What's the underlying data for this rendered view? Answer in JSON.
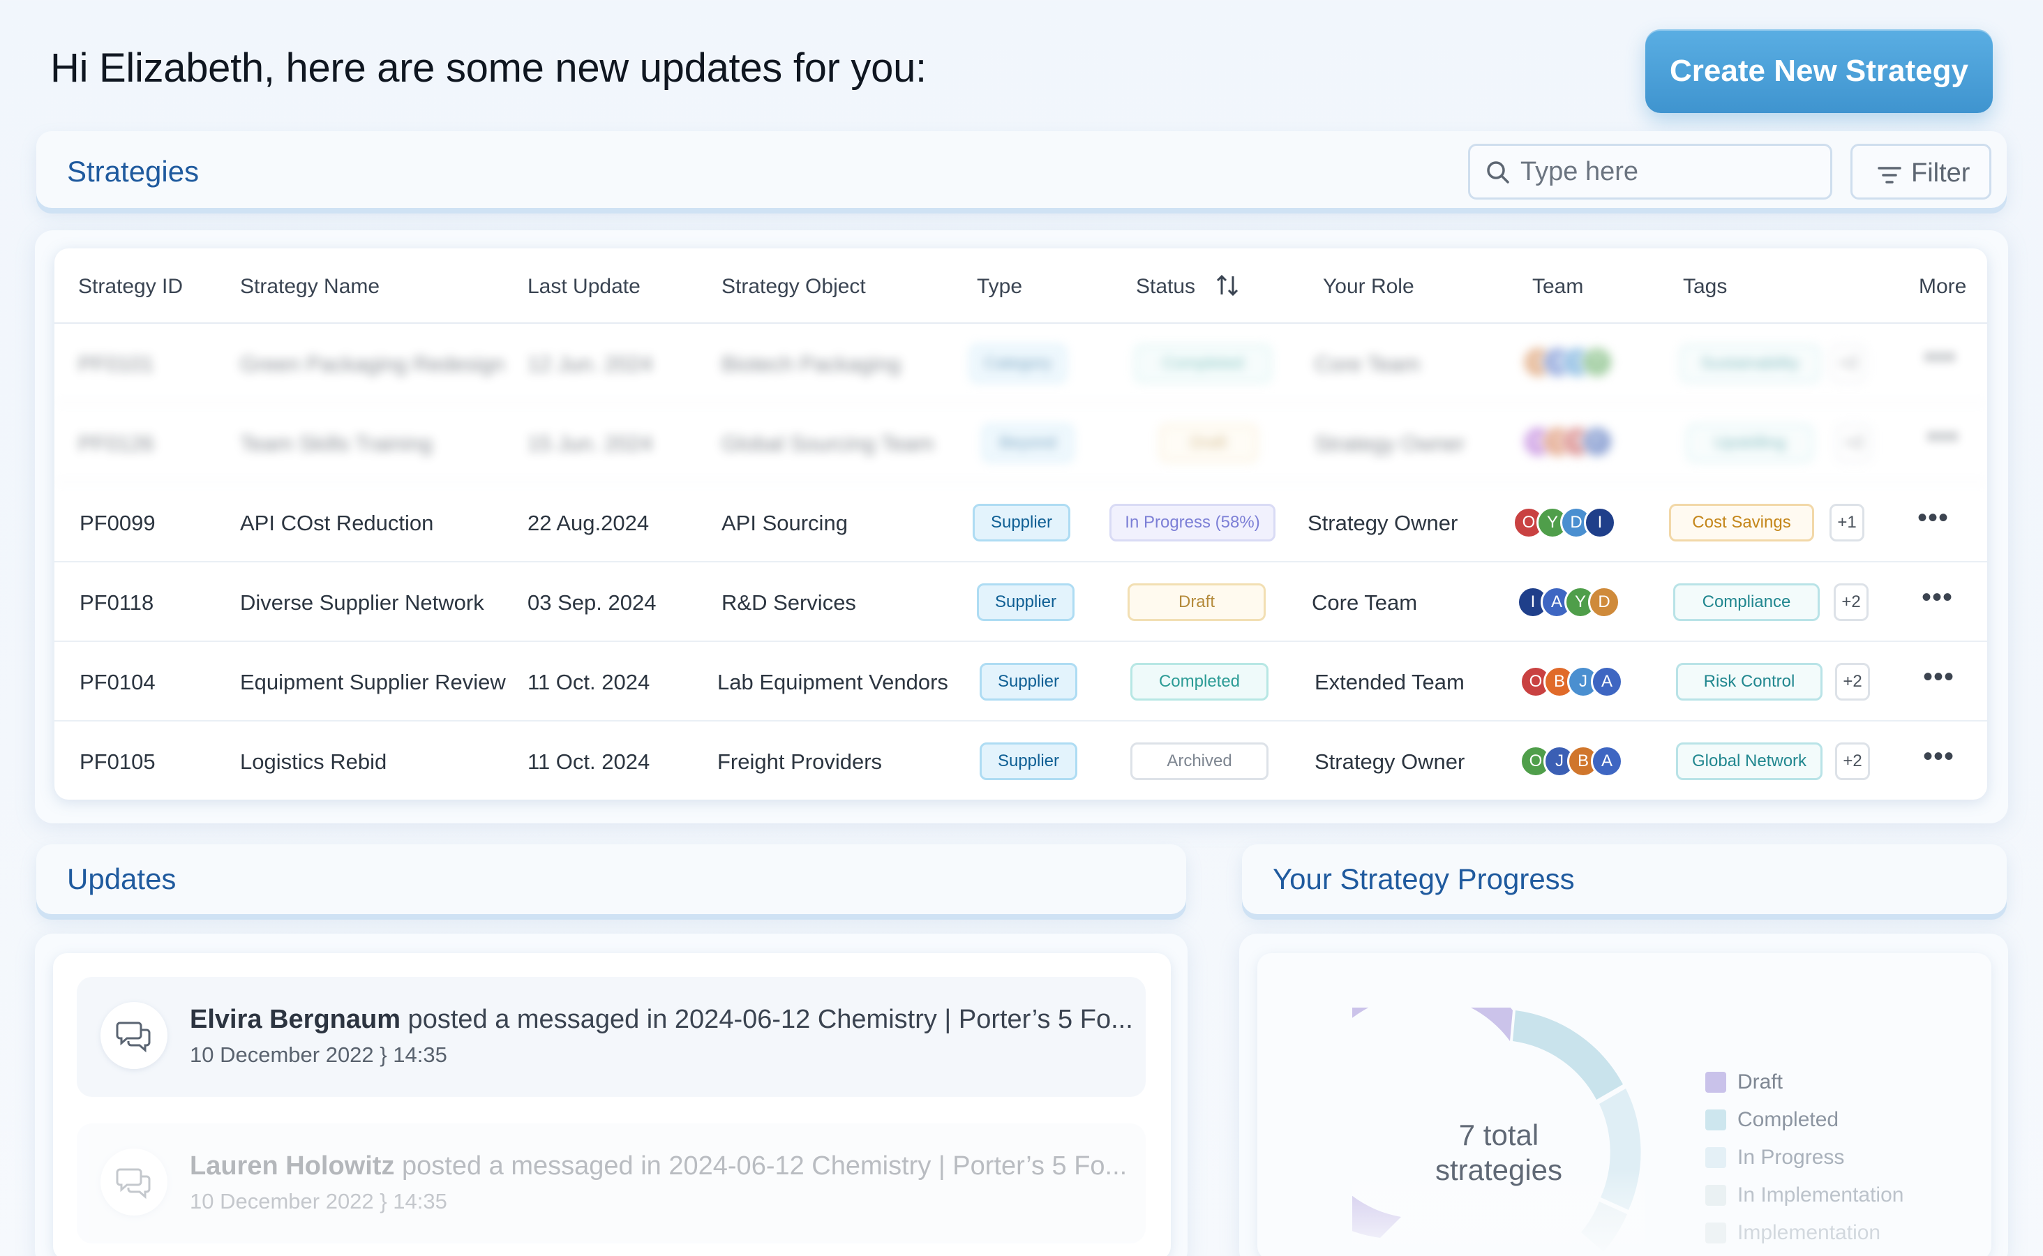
{
  "header": {
    "greeting": "Hi Elizabeth, here are some new updates for you:",
    "create_label": "Create New Strategy"
  },
  "strategies": {
    "title": "Strategies",
    "search_placeholder": "Type here",
    "filter_label": "Filter",
    "columns": [
      "Strategy ID",
      "Strategy Name",
      "Last Update",
      "Strategy Object",
      "Type",
      "Status",
      "Your Role",
      "Team",
      "Tags",
      "More"
    ],
    "rows": [
      {
        "id": "PF0101",
        "name": "Green Packaging Redesign",
        "date": "12 Jun. 2024",
        "object": "Biotech Packaging",
        "type": "Category",
        "status": "Completed",
        "role": "Core Team",
        "team": [
          "G",
          "A",
          "C",
          "T"
        ],
        "tag": "Sustainability",
        "plus": "+2"
      },
      {
        "id": "PF0126",
        "name": "Team Skills Training",
        "date": "15 Jun. 2024",
        "object": "Global Sourcing Team",
        "type": "Beyond",
        "status": "Draft",
        "role": "Strategy Owner",
        "team": [
          "M",
          "O",
          "R",
          "F"
        ],
        "tag": "Upskilling",
        "plus": "+2"
      },
      {
        "id": "PF0099",
        "name": "API COst Reduction",
        "date": "22 Aug.2024",
        "object": "API Sourcing",
        "type": "Supplier",
        "status": "In Progress (58%)",
        "role": "Strategy Owner",
        "team": [
          "O",
          "Y",
          "D",
          "I"
        ],
        "tag": "Cost Savings",
        "plus": "+1"
      },
      {
        "id": "PF0118",
        "name": "Diverse Supplier Network",
        "date": "03 Sep. 2024",
        "object": "R&D Services",
        "type": "Supplier",
        "status": "Draft",
        "role": "Core Team",
        "team": [
          "I",
          "A",
          "Y",
          "D"
        ],
        "tag": "Compliance",
        "plus": "+2"
      },
      {
        "id": "PF0104",
        "name": "Equipment Supplier Review",
        "date": "11 Oct. 2024",
        "object": "Lab Equipment Vendors",
        "type": "Supplier",
        "status": "Completed",
        "role": "Extended Team",
        "team": [
          "O",
          "B",
          "J",
          "A"
        ],
        "tag": "Risk Control",
        "plus": "+2"
      },
      {
        "id": "PF0105",
        "name": "Logistics Rebid",
        "date": "11 Oct. 2024",
        "object": "Freight Providers",
        "type": "Supplier",
        "status": "Archived",
        "role": "Strategy Owner",
        "team": [
          "O",
          "J",
          "B",
          "A"
        ],
        "tag": "Global Network",
        "plus": "+2"
      }
    ],
    "more_glyph": "•••"
  },
  "updates": {
    "title": "Updates",
    "items": [
      {
        "author": "Elvira Bergnaum",
        "text": " posted a messaged in 2024-06-12 Chemistry | Porter’s 5 Fo...",
        "time": "10 December 2022 } 14:35"
      },
      {
        "author": "Lauren Holowitz",
        "text": " posted a messaged in 2024-06-12 Chemistry | Porter’s 5 Fo...",
        "time": "10 December 2022 } 14:35"
      }
    ]
  },
  "progress": {
    "title": "Your Strategy Progress",
    "center_line1": "7 total",
    "center_line2": "strategies",
    "legend": [
      {
        "label": "Draft",
        "color": "#c9c2ea"
      },
      {
        "label": "Completed",
        "color": "#cde6ee"
      },
      {
        "label": "In Progress",
        "color": "#e4f0f6"
      },
      {
        "label": "In Implementation",
        "color": "#eaf1f3"
      },
      {
        "label": "Implementation",
        "color": "#eef3f5"
      }
    ]
  },
  "colors": {
    "accent": "#3f94cf",
    "title_blue": "#1f5a9e"
  }
}
